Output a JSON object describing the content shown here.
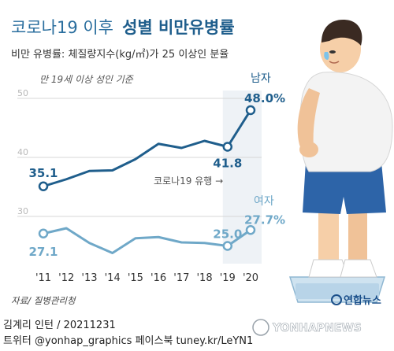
{
  "title": {
    "light": "코로나19 이후",
    "bold": "성별 비만유병률"
  },
  "subtitle": "비만 유병률: 체질량지수(kg/㎡)가 25 이상인 분율",
  "note": "만 19세 이상 성인 기준",
  "covid_label": "코로나19 유행 →",
  "source": "자료/ 질병관리청",
  "logo": "연합뉴스",
  "watermark": "YONHAPNEWS",
  "footer": {
    "line1": "김계리 인턴 / 20211231",
    "line2": "트위터 @yonhap_graphics  페이스북 tuney.kr/LeYN1"
  },
  "colors": {
    "male": "#1f5e8c",
    "female": "#6fa8c8",
    "highlight": "#eef2f6"
  },
  "chart_data": {
    "type": "line",
    "x": [
      "'11",
      "'12",
      "'13",
      "'14",
      "'15",
      "'16",
      "'17",
      "'18",
      "'19",
      "'20"
    ],
    "yticks": [
      30,
      40,
      50
    ],
    "ylim": [
      22,
      52
    ],
    "grid": true,
    "series": [
      {
        "name": "남자",
        "values": [
          35.1,
          36.3,
          37.7,
          37.8,
          39.7,
          42.3,
          41.6,
          42.8,
          41.8,
          48.0
        ],
        "labels": [
          {
            "index": 0,
            "text": "35.1"
          },
          {
            "index": 8,
            "text": "41.8"
          },
          {
            "index": 9,
            "text": "48.0%"
          }
        ]
      },
      {
        "name": "여자",
        "values": [
          27.1,
          28.0,
          25.5,
          23.8,
          26.3,
          26.5,
          25.6,
          25.5,
          25.0,
          27.7
        ],
        "labels": [
          {
            "index": 0,
            "text": "27.1"
          },
          {
            "index": 8,
            "text": "25.0"
          },
          {
            "index": 9,
            "text": "27.7%"
          }
        ]
      }
    ]
  }
}
